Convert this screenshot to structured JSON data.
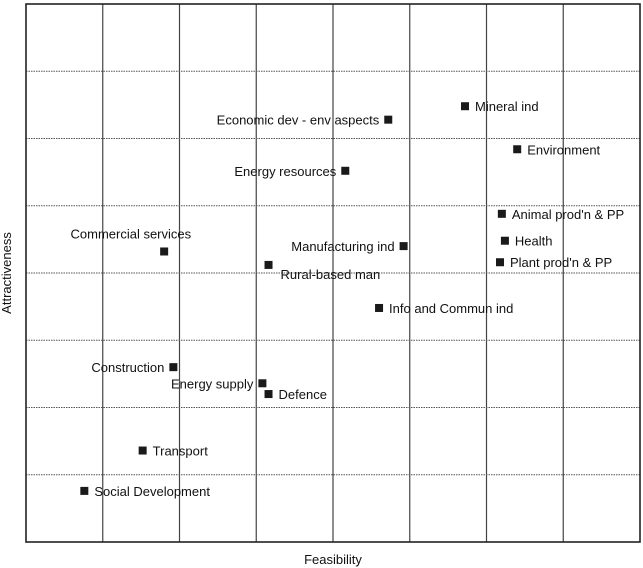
{
  "chart_data": {
    "type": "scatter",
    "title": "",
    "xlabel": "Feasibility",
    "ylabel": "Attractiveness",
    "xlim": [
      0,
      10
    ],
    "ylim": [
      0,
      10
    ],
    "grid": true,
    "legend": "none",
    "marker_color": "#1a1a1a",
    "points": [
      {
        "label": "Mineral ind",
        "x": 7.15,
        "y": 8.1,
        "label_side": "right"
      },
      {
        "label": "Economic dev - env aspects",
        "x": 5.9,
        "y": 7.85,
        "label_side": "left"
      },
      {
        "label": "Environment",
        "x": 8.0,
        "y": 7.3,
        "label_side": "right"
      },
      {
        "label": "Energy resources",
        "x": 5.2,
        "y": 6.9,
        "label_side": "left"
      },
      {
        "label": "Animal prod'n & PP",
        "x": 7.75,
        "y": 6.1,
        "label_side": "right"
      },
      {
        "label": "Health",
        "x": 7.8,
        "y": 5.6,
        "label_side": "right"
      },
      {
        "label": "Manufacturing ind",
        "x": 6.15,
        "y": 5.5,
        "label_side": "left"
      },
      {
        "label": "Commercial services",
        "x": 2.25,
        "y": 5.4,
        "label_side": "above-left"
      },
      {
        "label": "Plant prod'n & PP",
        "x": 7.72,
        "y": 5.2,
        "label_side": "right"
      },
      {
        "label": "Rural-based man",
        "x": 3.95,
        "y": 5.15,
        "label_side": "below-right"
      },
      {
        "label": "Info and Commun ind",
        "x": 5.75,
        "y": 4.35,
        "label_side": "right"
      },
      {
        "label": "Construction",
        "x": 2.4,
        "y": 3.25,
        "label_side": "left"
      },
      {
        "label": "Energy supply",
        "x": 3.85,
        "y": 2.95,
        "label_side": "left"
      },
      {
        "label": "Defence",
        "x": 3.95,
        "y": 2.75,
        "label_side": "right"
      },
      {
        "label": "Transport",
        "x": 1.9,
        "y": 1.7,
        "label_side": "right"
      },
      {
        "label": "Social Development",
        "x": 0.95,
        "y": 0.95,
        "label_side": "right"
      }
    ]
  }
}
